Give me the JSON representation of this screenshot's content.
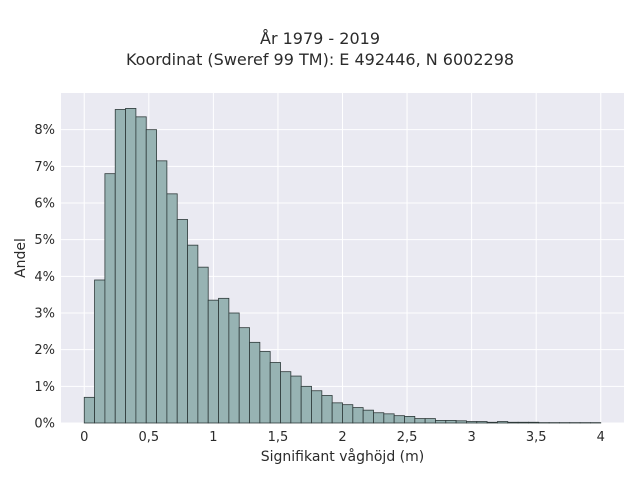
{
  "chart_data": {
    "type": "bar",
    "title": "År 1979 - 2019",
    "subtitle": "Koordinat (Sweref 99 TM): E 492446, N 6002298",
    "xlabel": "Signifikant våghöjd (m)",
    "ylabel": "Andel",
    "xlim": [
      -0.18,
      4.18
    ],
    "ylim": [
      0,
      9.0
    ],
    "x_ticks": [
      0,
      0.5,
      1,
      1.5,
      2,
      2.5,
      3,
      3.5,
      4
    ],
    "x_tick_labels": [
      "0",
      "0,5",
      "1",
      "1,5",
      "2",
      "2,5",
      "3",
      "3,5",
      "4"
    ],
    "y_ticks": [
      0,
      1,
      2,
      3,
      4,
      5,
      6,
      7,
      8
    ],
    "y_tick_labels": [
      "0%",
      "1%",
      "2%",
      "3%",
      "4%",
      "5%",
      "6%",
      "7%",
      "8%"
    ],
    "bin_start": 0.0,
    "bin_width": 0.08,
    "values": [
      0.7,
      3.9,
      6.8,
      8.55,
      8.58,
      8.35,
      8.0,
      7.15,
      6.25,
      5.55,
      4.85,
      4.25,
      3.35,
      3.4,
      3.0,
      2.6,
      2.2,
      1.95,
      1.65,
      1.4,
      1.28,
      1.0,
      0.88,
      0.75,
      0.55,
      0.5,
      0.42,
      0.35,
      0.28,
      0.25,
      0.2,
      0.18,
      0.12,
      0.12,
      0.07,
      0.07,
      0.06,
      0.04,
      0.04,
      0.02,
      0.04,
      0.02,
      0.02,
      0.02,
      0.01,
      0.01,
      0.01,
      0.01,
      0.01,
      0.01
    ],
    "grid": true,
    "colors": {
      "bar_fill": "#97b3b3",
      "bar_stroke": "#2e3a3a",
      "plot_bg": "#eaeaf2",
      "grid": "#ffffff"
    }
  }
}
